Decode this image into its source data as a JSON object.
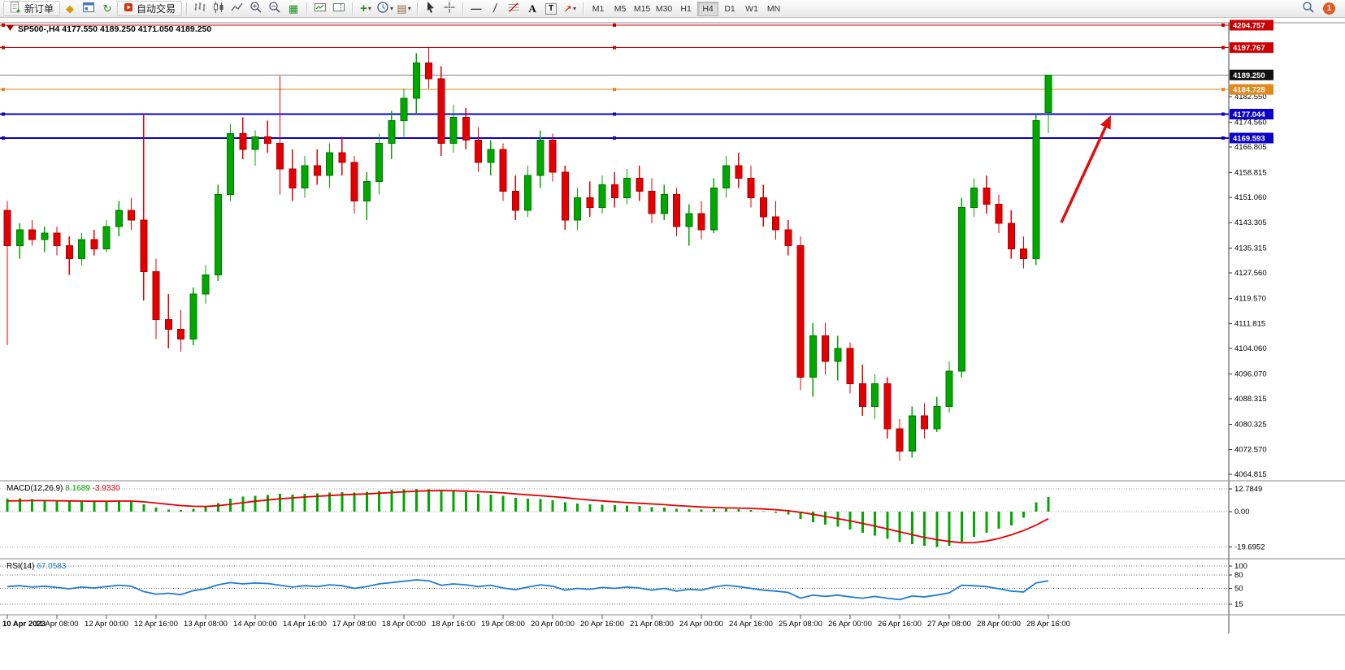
{
  "toolbar": {
    "new_order": "新订单",
    "autotrading": "自动交易",
    "glyphs": {
      "symbols": "◆",
      "refresh": "↻",
      "tile": "▦",
      "templates": "▤",
      "plus": "+",
      "dropdown": "▾",
      "hline": "—",
      "trendline": "/",
      "text": "A",
      "label": "T",
      "shapes": "↗"
    },
    "timeframes": [
      "M1",
      "M5",
      "M15",
      "M30",
      "H1",
      "H4",
      "D1",
      "W1",
      "MN"
    ],
    "active_timeframe": "H4",
    "notification_count": "1"
  },
  "chart": {
    "title": "SP500-,H4  4177.550 4189.250 4171.050 4189.250",
    "hlines": [
      {
        "price": 4204.757,
        "label": "4204.757",
        "color": "#cc0000",
        "width": 1
      },
      {
        "price": 4197.767,
        "label": "4197.767",
        "color": "#cc0000",
        "width": 1
      },
      {
        "price": 4184.728,
        "label": "4184.728",
        "color": "#e2891b",
        "width": 1
      },
      {
        "price": 4177.044,
        "label": "4177.044",
        "color": "#0b00c8",
        "width": 2
      },
      {
        "price": 4169.593,
        "label": "4169.593",
        "color": "#0b00c8",
        "width": 2
      }
    ],
    "current": {
      "price": 4189.25,
      "label": "4189.250",
      "line_color": "#808080",
      "badge_color": "#101010"
    },
    "price_axis_labels": [
      "4182.550",
      "4174.560",
      "4166.805",
      "4158.815",
      "4151.060",
      "4143.305",
      "4135.315",
      "4127.560",
      "4119.570",
      "4111.815",
      "4104.060",
      "4096.070",
      "4088.315",
      "4080.325",
      "4072.570",
      "4064.815"
    ],
    "time_labels": [
      "10 Apr 2023",
      "11 Apr 08:00",
      "12 Apr 00:00",
      "12 Apr 16:00",
      "13 Apr 08:00",
      "14 Apr 00:00",
      "14 Apr 16:00",
      "17 Apr 08:00",
      "18 Apr 00:00",
      "18 Apr 16:00",
      "19 Apr 08:00",
      "20 Apr 00:00",
      "20 Apr 16:00",
      "21 Apr 08:00",
      "24 Apr 00:00",
      "24 Apr 16:00",
      "25 Apr 08:00",
      "26 Apr 00:00",
      "26 Apr 16:00",
      "27 Apr 08:00",
      "28 Apr 00:00",
      "28 Apr 16:00"
    ],
    "annotation_arrow": {
      "from": [
        1306,
        274
      ],
      "to": [
        1367,
        142
      ],
      "color": "#e01010"
    },
    "colors": {
      "up": "#00a800",
      "up_stroke": "#007800",
      "down": "#e40000",
      "down_stroke": "#b00000",
      "macd_hist": "#00a800",
      "macd_signal": "#e40000",
      "rsi": "#1e7cd6",
      "background": "#ffffff"
    }
  },
  "chart_data": {
    "type": "candlestick",
    "symbol": "SP500-",
    "timeframe": "H4",
    "ohlc": [
      [
        4147,
        4150,
        4105,
        4136
      ],
      [
        4136,
        4143,
        4132,
        4141
      ],
      [
        4141,
        4144,
        4136,
        4138
      ],
      [
        4138,
        4142,
        4134,
        4140
      ],
      [
        4140,
        4142,
        4133,
        4136
      ],
      [
        4136,
        4139,
        4127,
        4132
      ],
      [
        4132,
        4140,
        4130,
        4138
      ],
      [
        4138,
        4141,
        4133,
        4135
      ],
      [
        4135,
        4144,
        4134,
        4142
      ],
      [
        4142,
        4150,
        4139,
        4147
      ],
      [
        4147,
        4151,
        4141,
        4144
      ],
      [
        4144,
        4177,
        4119,
        4128
      ],
      [
        4128,
        4132,
        4107,
        4113
      ],
      [
        4113,
        4121,
        4104,
        4110
      ],
      [
        4110,
        4116,
        4103,
        4107
      ],
      [
        4107,
        4123,
        4105,
        4121
      ],
      [
        4121,
        4130,
        4118,
        4127
      ],
      [
        4127,
        4155,
        4125,
        4152
      ],
      [
        4152,
        4174,
        4150,
        4171
      ],
      [
        4171,
        4176,
        4163,
        4166
      ],
      [
        4166,
        4172,
        4161,
        4170
      ],
      [
        4170,
        4175,
        4165,
        4168
      ],
      [
        4168,
        4189,
        4152,
        4160
      ],
      [
        4160,
        4166,
        4150,
        4154
      ],
      [
        4154,
        4164,
        4151,
        4161
      ],
      [
        4161,
        4166,
        4155,
        4158
      ],
      [
        4158,
        4168,
        4154,
        4165
      ],
      [
        4165,
        4170,
        4158,
        4162
      ],
      [
        4162,
        4164,
        4146,
        4150
      ],
      [
        4150,
        4159,
        4144,
        4156
      ],
      [
        4156,
        4171,
        4152,
        4168
      ],
      [
        4168,
        4178,
        4163,
        4175
      ],
      [
        4175,
        4185,
        4170,
        4182
      ],
      [
        4182,
        4196,
        4177,
        4193
      ],
      [
        4193,
        4198,
        4185,
        4188
      ],
      [
        4188,
        4192,
        4164,
        4168
      ],
      [
        4168,
        4180,
        4165,
        4176
      ],
      [
        4176,
        4179,
        4166,
        4169
      ],
      [
        4169,
        4173,
        4159,
        4162
      ],
      [
        4162,
        4169,
        4158,
        4166
      ],
      [
        4166,
        4168,
        4150,
        4153
      ],
      [
        4153,
        4158,
        4144,
        4147
      ],
      [
        4147,
        4161,
        4145,
        4158
      ],
      [
        4158,
        4172,
        4154,
        4169
      ],
      [
        4169,
        4171,
        4156,
        4159
      ],
      [
        4159,
        4161,
        4141,
        4144
      ],
      [
        4144,
        4154,
        4141,
        4151
      ],
      [
        4151,
        4156,
        4145,
        4148
      ],
      [
        4148,
        4158,
        4146,
        4155
      ],
      [
        4155,
        4159,
        4148,
        4151
      ],
      [
        4151,
        4160,
        4149,
        4157
      ],
      [
        4157,
        4161,
        4150,
        4153
      ],
      [
        4153,
        4157,
        4143,
        4146
      ],
      [
        4146,
        4155,
        4144,
        4152
      ],
      [
        4152,
        4154,
        4139,
        4142
      ],
      [
        4142,
        4149,
        4136,
        4146
      ],
      [
        4146,
        4150,
        4138,
        4141
      ],
      [
        4141,
        4157,
        4140,
        4154
      ],
      [
        4154,
        4164,
        4151,
        4161
      ],
      [
        4161,
        4165,
        4154,
        4157
      ],
      [
        4157,
        4161,
        4148,
        4151
      ],
      [
        4151,
        4155,
        4142,
        4145
      ],
      [
        4145,
        4150,
        4138,
        4141
      ],
      [
        4141,
        4144,
        4133,
        4136
      ],
      [
        4136,
        4139,
        4091,
        4095
      ],
      [
        4095,
        4112,
        4089,
        4108
      ],
      [
        4108,
        4112,
        4096,
        4100
      ],
      [
        4100,
        4108,
        4094,
        4104
      ],
      [
        4104,
        4106,
        4090,
        4093
      ],
      [
        4093,
        4099,
        4083,
        4086
      ],
      [
        4086,
        4096,
        4082,
        4093
      ],
      [
        4093,
        4095,
        4076,
        4079
      ],
      [
        4079,
        4082,
        4069,
        4072
      ],
      [
        4072,
        4086,
        4070,
        4083
      ],
      [
        4083,
        4087,
        4076,
        4079
      ],
      [
        4079,
        4089,
        4078,
        4086
      ],
      [
        4086,
        4100,
        4084,
        4097
      ],
      [
        4097,
        4151,
        4095,
        4148
      ],
      [
        4148,
        4157,
        4145,
        4154
      ],
      [
        4154,
        4158,
        4146,
        4149
      ],
      [
        4149,
        4152,
        4140,
        4143
      ],
      [
        4143,
        4147,
        4132,
        4135
      ],
      [
        4135,
        4139,
        4129,
        4132
      ],
      [
        4132,
        4177,
        4130,
        4175
      ],
      [
        4177.55,
        4189.25,
        4171.05,
        4189.25
      ]
    ],
    "macd": {
      "label": "MACD(12,26,9)",
      "main_value": "8.1689",
      "signal_value": "-3.9330",
      "axis_labels": [
        "12.7849",
        "0.00",
        "-19.6952"
      ],
      "axis_values": [
        12.7849,
        0,
        -19.6952
      ],
      "histogram": [
        7.2,
        7.5,
        7.0,
        6.6,
        6.3,
        5.8,
        5.9,
        5.6,
        5.8,
        6.3,
        5.9,
        4.0,
        2.2,
        1.2,
        0.8,
        1.6,
        2.6,
        4.8,
        7.2,
        8.3,
        8.9,
        9.4,
        9.9,
        9.6,
        10.0,
        10.2,
        10.6,
        10.9,
        10.7,
        11.1,
        11.7,
        12.2,
        12.6,
        12.7849,
        12.6,
        11.8,
        11.4,
        10.8,
        10.1,
        9.6,
        8.8,
        7.8,
        7.2,
        7.0,
        6.4,
        5.2,
        4.6,
        4.1,
        3.9,
        3.6,
        3.5,
        3.2,
        2.6,
        2.3,
        1.7,
        1.4,
        1.1,
        1.3,
        1.6,
        1.4,
        0.9,
        0.2,
        -0.6,
        -1.6,
        -4.2,
        -5.8,
        -7.2,
        -8.4,
        -10.0,
        -11.8,
        -13.4,
        -15.2,
        -17.0,
        -18.2,
        -19.0,
        -19.6952,
        -19.1,
        -16.8,
        -14.2,
        -11.8,
        -9.6,
        -7.8,
        -3.5,
        5.2,
        8.1689
      ],
      "signal": [
        6.0,
        6.1,
        6.2,
        6.2,
        6.1,
        6.0,
        5.9,
        5.8,
        5.8,
        5.9,
        5.9,
        5.5,
        4.8,
        4.1,
        3.4,
        3.0,
        2.9,
        3.3,
        4.1,
        5.0,
        5.8,
        6.5,
        7.2,
        7.7,
        8.2,
        8.6,
        9.0,
        9.4,
        9.7,
        9.9,
        10.3,
        10.7,
        11.1,
        11.4,
        11.7,
        11.8,
        11.7,
        11.5,
        11.2,
        10.9,
        10.5,
        9.9,
        9.4,
        8.9,
        8.4,
        7.8,
        7.1,
        6.5,
        6.0,
        5.5,
        5.1,
        4.7,
        4.3,
        3.9,
        3.4,
        3.0,
        2.6,
        2.3,
        2.1,
        2.0,
        1.8,
        1.5,
        1.1,
        0.5,
        -0.4,
        -1.5,
        -2.7,
        -3.9,
        -5.2,
        -6.6,
        -8.1,
        -9.7,
        -11.3,
        -12.9,
        -14.4,
        -15.7,
        -16.7,
        -17.4,
        -17.3,
        -16.5,
        -15.0,
        -13.0,
        -10.6,
        -7.6,
        -3.933
      ]
    },
    "rsi": {
      "label": "RSI(14)",
      "value": "67.0583",
      "levels": [
        "100",
        "80",
        "50",
        "15"
      ],
      "level_values": [
        100,
        80,
        50,
        15
      ],
      "values": [
        54,
        56,
        53,
        55,
        52,
        49,
        53,
        51,
        54,
        57,
        55,
        43,
        37,
        39,
        36,
        45,
        49,
        58,
        63,
        60,
        62,
        61,
        57,
        53,
        56,
        54,
        58,
        56,
        50,
        54,
        60,
        63,
        66,
        69,
        67,
        57,
        60,
        58,
        54,
        57,
        51,
        47,
        53,
        58,
        55,
        46,
        50,
        48,
        52,
        50,
        53,
        51,
        46,
        50,
        44,
        48,
        46,
        53,
        57,
        54,
        50,
        46,
        44,
        41,
        28,
        35,
        32,
        35,
        31,
        28,
        32,
        28,
        25,
        33,
        31,
        35,
        40,
        57,
        56,
        54,
        49,
        44,
        42,
        62,
        67.0583
      ]
    }
  }
}
